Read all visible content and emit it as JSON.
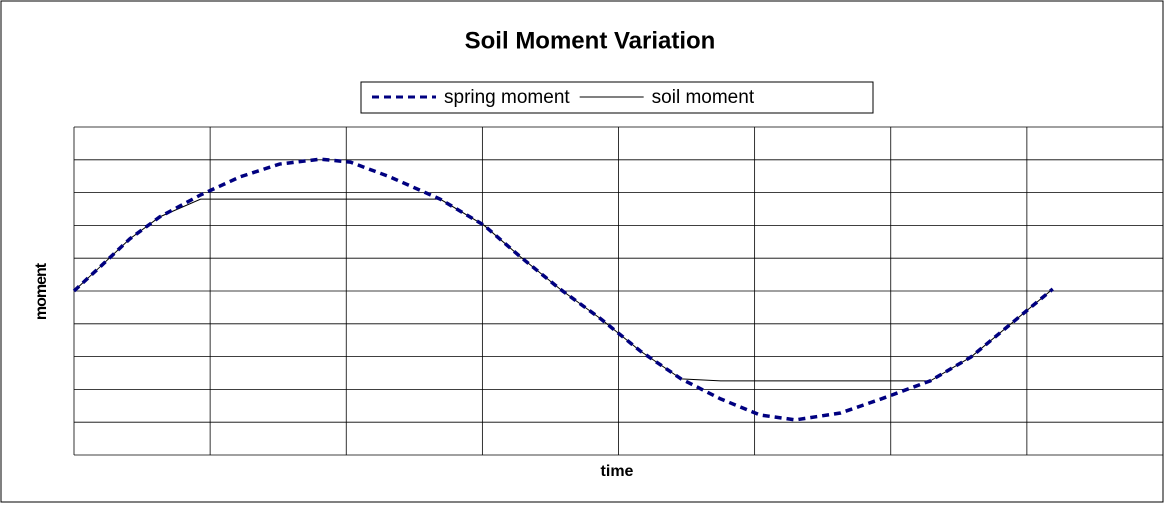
{
  "chart_data": {
    "type": "line",
    "title": "Soil Moment Variation",
    "xlabel": "time",
    "ylabel": "moment",
    "x": [
      0,
      0.19,
      0.41,
      0.63,
      0.93,
      1.22,
      1.51,
      1.81,
      2.03,
      2.32,
      2.69,
      3.01,
      3.28,
      3.57,
      3.87,
      4.16,
      4.46,
      4.75,
      5.04,
      5.3,
      5.63,
      5.93,
      6.29,
      6.59,
      6.88,
      7.19
    ],
    "series": [
      {
        "name": "spring moment",
        "color": "#000080",
        "style": "dashed",
        "values": [
          0,
          0.73,
          1.59,
          2.26,
          2.93,
          3.48,
          3.87,
          4.02,
          3.93,
          3.48,
          2.8,
          2.01,
          1.04,
          0.06,
          -0.85,
          -1.83,
          -2.68,
          -3.29,
          -3.78,
          -3.93,
          -3.72,
          -3.29,
          -2.74,
          -2.01,
          -1.01,
          0.06
        ]
      },
      {
        "name": "soil moment",
        "color": "#000000",
        "style": "solid",
        "values": [
          0,
          0.73,
          1.59,
          2.26,
          2.8,
          2.8,
          2.8,
          2.8,
          2.8,
          2.8,
          2.8,
          2.01,
          1.04,
          0.06,
          -0.85,
          -1.83,
          -2.68,
          -2.74,
          -2.74,
          -2.74,
          -2.74,
          -2.74,
          -2.74,
          -2.01,
          -1.01,
          0.06
        ]
      }
    ],
    "xlim": [
      0,
      8
    ],
    "xticks": [
      0,
      1,
      2,
      3,
      4,
      5,
      6,
      7,
      8
    ],
    "ylim": [
      -5,
      5
    ],
    "yticks": [
      -5,
      -4,
      -3,
      -2,
      -1,
      0,
      1,
      2,
      3,
      4,
      5
    ],
    "grid": true,
    "legend": "top"
  }
}
